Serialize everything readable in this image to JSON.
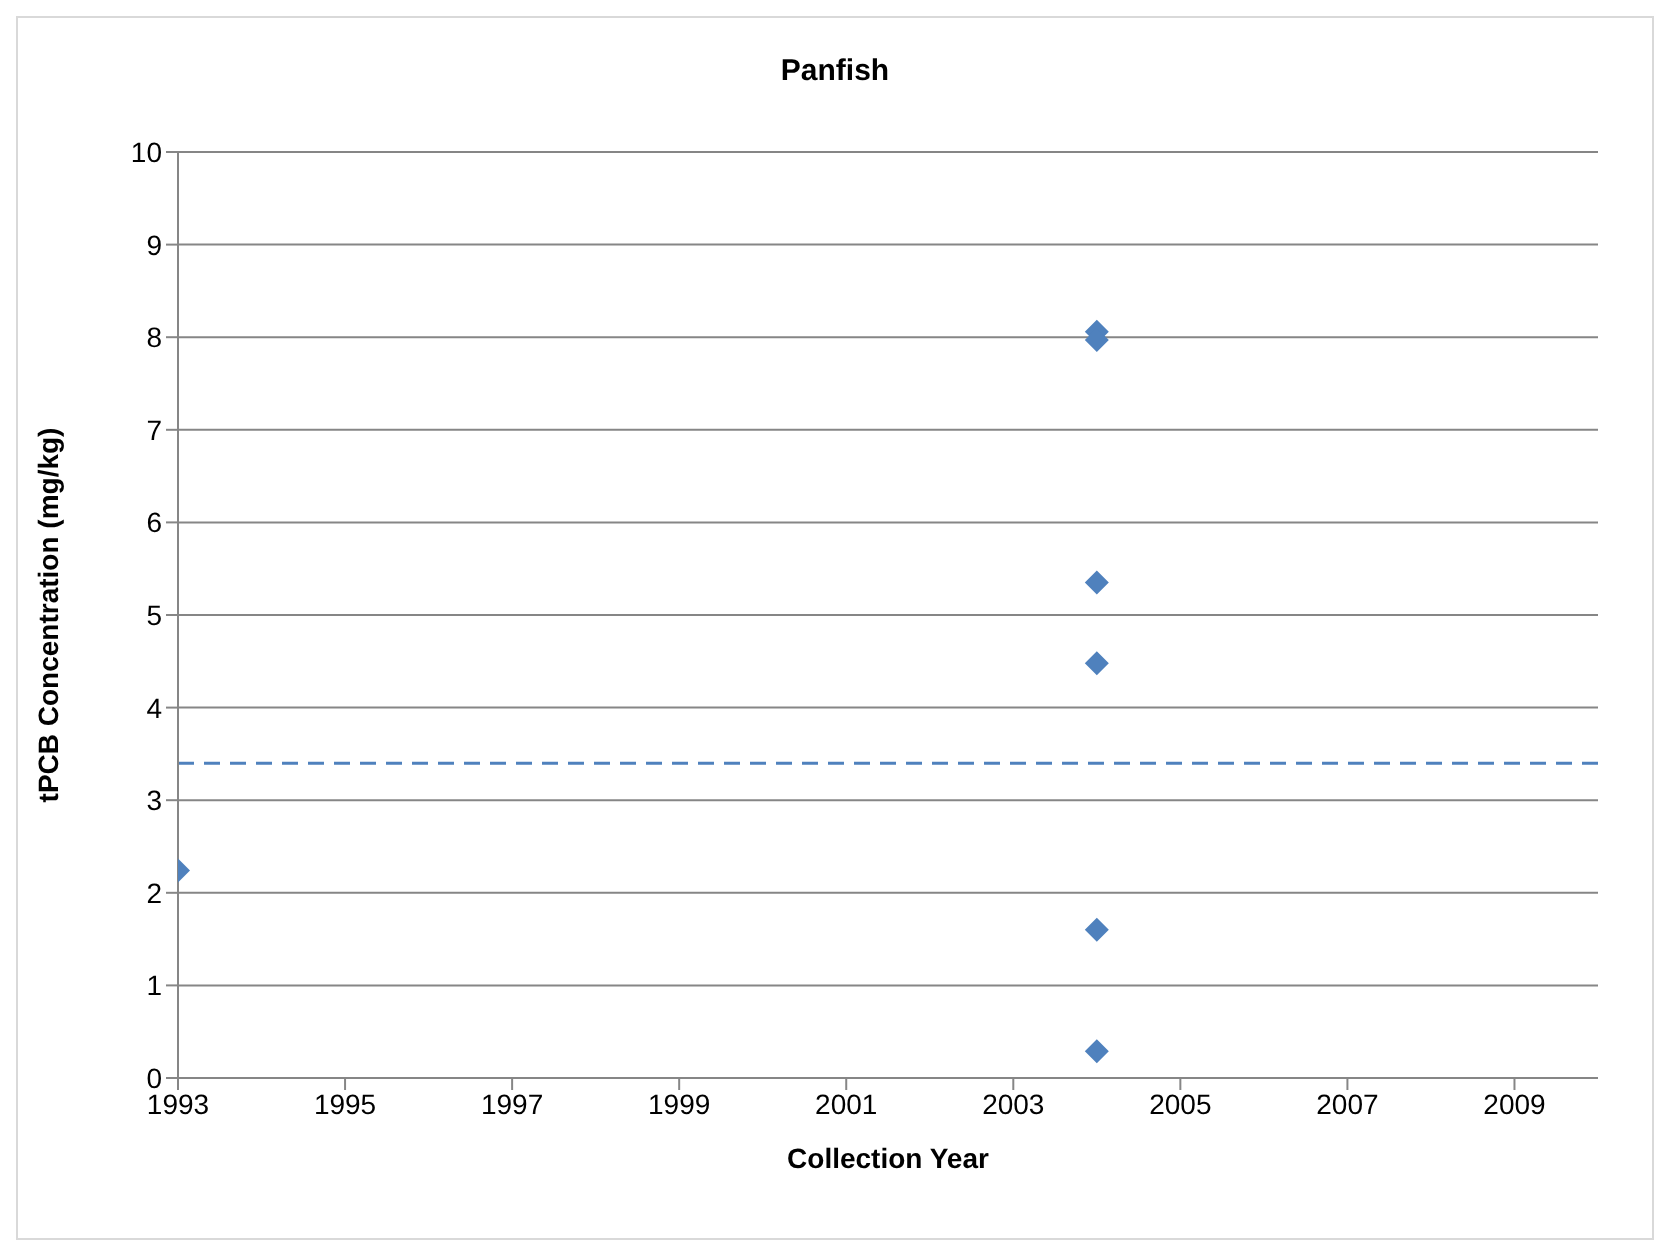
{
  "chart_data": {
    "type": "scatter",
    "title": "Panfish",
    "xlabel": "Collection Year",
    "ylabel": "tPCB Concentration (mg/kg)",
    "x": [
      "1993",
      "2004",
      "2004",
      "2004",
      "2004",
      "2004",
      "2004"
    ],
    "series": [
      {
        "color": "#4f81bd",
        "values": [
          2.24,
          8.06,
          7.97,
          5.35,
          4.48,
          1.6,
          0.29
        ]
      }
    ],
    "xlim": [
      "1993",
      "2010"
    ],
    "xticks": [
      "1993",
      "1995",
      "1997",
      "1999",
      "2001",
      "2003",
      "2005",
      "2007",
      "2009"
    ],
    "ylim": [
      0,
      10
    ],
    "yticks": [
      0,
      1,
      2,
      3,
      4,
      5,
      6,
      7,
      8,
      9,
      10
    ],
    "ref_lines": [
      {
        "axis": "y",
        "value": 3.4,
        "color": "#4f81bd",
        "line_style": "dashed"
      }
    ],
    "grid": "y",
    "marker": "diamond",
    "legend": false
  }
}
